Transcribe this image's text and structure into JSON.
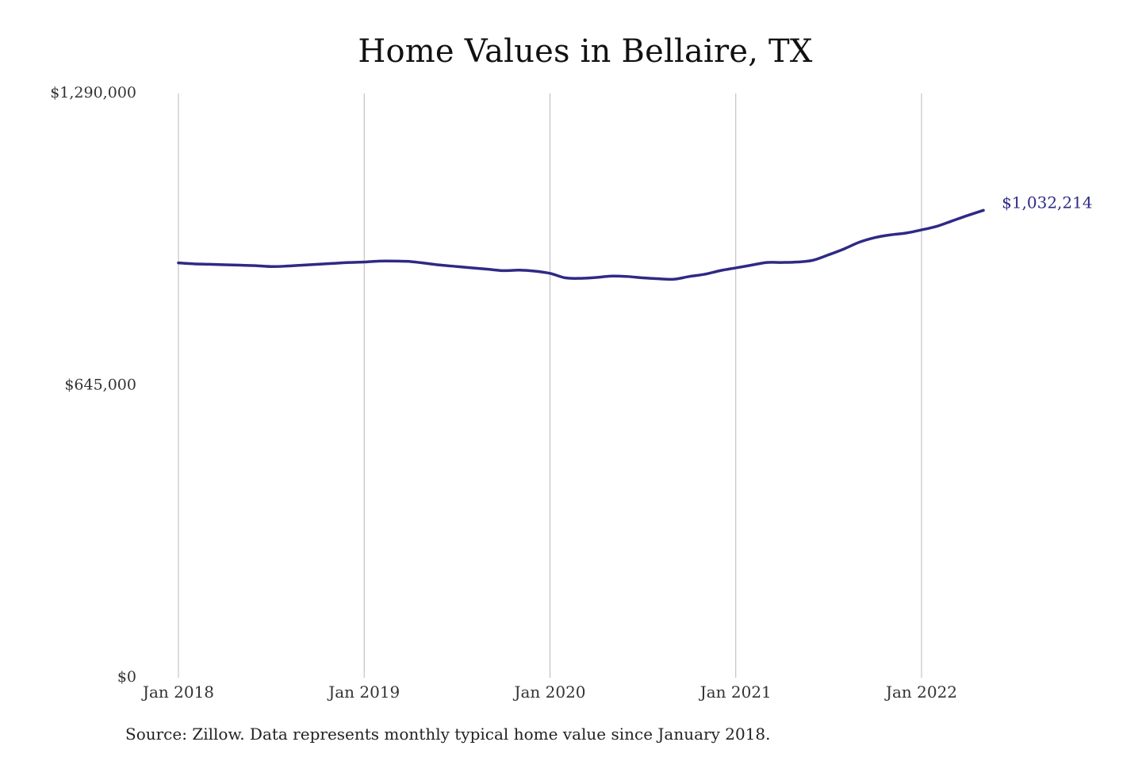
{
  "chart_data": {
    "type": "line",
    "title": "Home Values in Bellaire, TX",
    "xlabel": "",
    "ylabel": "",
    "ylim": [
      0,
      1290000
    ],
    "y_ticks": [
      {
        "value": 0,
        "label": "$0"
      },
      {
        "value": 645000,
        "label": "$645,000"
      },
      {
        "value": 1290000,
        "label": "$1,290,000"
      }
    ],
    "x_ticks": [
      {
        "date": "2018-01",
        "label": "Jan 2018"
      },
      {
        "date": "2019-01",
        "label": "Jan 2019"
      },
      {
        "date": "2020-01",
        "label": "Jan 2020"
      },
      {
        "date": "2021-01",
        "label": "Jan 2021"
      },
      {
        "date": "2022-01",
        "label": "Jan 2022"
      }
    ],
    "xlim": [
      "2018-01",
      "2022-05"
    ],
    "grid": "vertical",
    "line_color": "#2e2a85",
    "series": [
      {
        "name": "",
        "x": [
          "2018-01",
          "2018-02",
          "2018-03",
          "2018-04",
          "2018-05",
          "2018-06",
          "2018-07",
          "2018-08",
          "2018-09",
          "2018-10",
          "2018-11",
          "2018-12",
          "2019-01",
          "2019-02",
          "2019-03",
          "2019-04",
          "2019-05",
          "2019-06",
          "2019-07",
          "2019-08",
          "2019-09",
          "2019-10",
          "2019-11",
          "2019-12",
          "2020-01",
          "2020-02",
          "2020-03",
          "2020-04",
          "2020-05",
          "2020-06",
          "2020-07",
          "2020-08",
          "2020-09",
          "2020-10",
          "2020-11",
          "2020-12",
          "2021-01",
          "2021-02",
          "2021-03",
          "2021-04",
          "2021-05",
          "2021-06",
          "2021-07",
          "2021-08",
          "2021-09",
          "2021-10",
          "2021-11",
          "2021-12",
          "2022-01",
          "2022-02",
          "2022-03",
          "2022-04",
          "2022-05"
        ],
        "values": [
          916000,
          914000,
          913000,
          912000,
          911000,
          910000,
          908000,
          909000,
          911000,
          913000,
          915000,
          917000,
          918000,
          920000,
          920000,
          919000,
          915000,
          911000,
          908000,
          905000,
          902000,
          899000,
          900000,
          898000,
          893000,
          883000,
          882000,
          884000,
          887000,
          886000,
          883000,
          881000,
          880000,
          886000,
          891000,
          899000,
          905000,
          911000,
          917000,
          917000,
          918000,
          922000,
          934000,
          947000,
          962000,
          972000,
          978000,
          982000,
          989000,
          997000,
          1009000,
          1021000,
          1032214
        ]
      }
    ],
    "annotations": [
      {
        "text": "$1,032,214",
        "x": "2022-05",
        "y": 1032214
      }
    ]
  },
  "footer": {
    "source": "Source: Zillow. Data represents monthly typical home value since January 2018."
  }
}
